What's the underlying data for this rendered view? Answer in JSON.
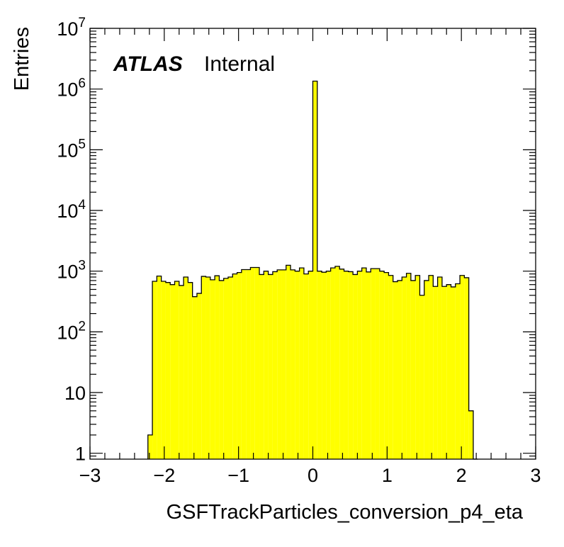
{
  "chart_data": {
    "type": "bar",
    "style": "histogram",
    "xlabel": "GSFTrackParticles_conversion_p4_eta",
    "ylabel": "Entries",
    "label_main": "ATLAS",
    "label_sub": "Internal",
    "xlim": [
      -3,
      3
    ],
    "ylim": [
      0.8,
      10000000
    ],
    "yscale": "log",
    "x_ticks": [
      "−3",
      "−2",
      "−1",
      "0",
      "1",
      "2",
      "3"
    ],
    "y_ticks": [
      {
        "value": 1,
        "base": "1",
        "exp": ""
      },
      {
        "value": 10,
        "base": "10",
        "exp": ""
      },
      {
        "value": 100,
        "base": "10",
        "exp": "2"
      },
      {
        "value": 1000,
        "base": "10",
        "exp": "3"
      },
      {
        "value": 10000,
        "base": "10",
        "exp": "4"
      },
      {
        "value": 100000,
        "base": "10",
        "exp": "5"
      },
      {
        "value": 1000000,
        "base": "10",
        "exp": "6"
      },
      {
        "value": 10000000,
        "base": "10",
        "exp": "7"
      }
    ],
    "bin_width": 0.06,
    "fill_color": "#ffff00",
    "bin_low_edges": [
      -2.22,
      -2.16,
      -2.1,
      -2.04,
      -1.98,
      -1.92,
      -1.86,
      -1.8,
      -1.74,
      -1.68,
      -1.62,
      -1.56,
      -1.5,
      -1.44,
      -1.38,
      -1.32,
      -1.26,
      -1.2,
      -1.14,
      -1.08,
      -1.02,
      -0.96,
      -0.9,
      -0.84,
      -0.78,
      -0.72,
      -0.66,
      -0.6,
      -0.54,
      -0.48,
      -0.42,
      -0.36,
      -0.3,
      -0.24,
      -0.18,
      -0.12,
      -0.06,
      0.0,
      0.06,
      0.12,
      0.18,
      0.24,
      0.3,
      0.36,
      0.42,
      0.48,
      0.54,
      0.6,
      0.66,
      0.72,
      0.78,
      0.84,
      0.9,
      0.96,
      1.02,
      1.08,
      1.14,
      1.2,
      1.26,
      1.32,
      1.38,
      1.44,
      1.5,
      1.56,
      1.62,
      1.68,
      1.74,
      1.8,
      1.86,
      1.92,
      1.98,
      2.04,
      2.1,
      2.16
    ],
    "bin_values": [
      2,
      680,
      830,
      680,
      650,
      600,
      680,
      580,
      800,
      650,
      380,
      430,
      820,
      800,
      720,
      840,
      700,
      760,
      800,
      900,
      950,
      1060,
      1060,
      1150,
      1150,
      880,
      1000,
      880,
      980,
      1050,
      1050,
      1250,
      1050,
      1000,
      1130,
      900,
      1000,
      1350000,
      1000,
      960,
      1000,
      1130,
      1200,
      1080,
      1000,
      980,
      880,
      1000,
      1130,
      970,
      1100,
      1100,
      1000,
      950,
      850,
      670,
      700,
      800,
      920,
      700,
      850,
      400,
      700,
      850,
      560,
      800,
      560,
      600,
      550,
      620,
      850,
      780,
      5,
      0
    ]
  }
}
